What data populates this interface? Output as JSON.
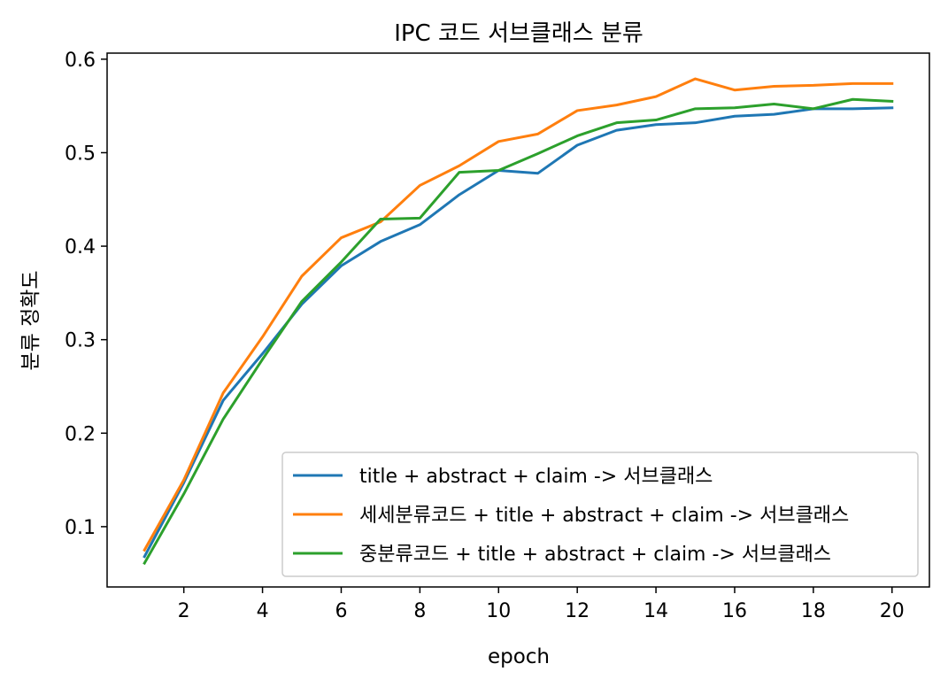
{
  "chart_data": {
    "type": "line",
    "title": "IPC 코드 서브클래스 분류",
    "xlabel": "epoch",
    "ylabel": "분류 정확도",
    "xlim": [
      0.05,
      20.95
    ],
    "ylim": [
      0.0355,
      0.6065
    ],
    "xticks": [
      2,
      4,
      6,
      8,
      10,
      12,
      14,
      16,
      18,
      20
    ],
    "yticks": [
      0.1,
      0.2,
      0.3,
      0.4,
      0.5,
      0.6
    ],
    "grid": false,
    "legend_position": "lower-right",
    "x": [
      1,
      2,
      3,
      4,
      5,
      6,
      7,
      8,
      9,
      10,
      11,
      12,
      13,
      14,
      15,
      16,
      17,
      18,
      19,
      20
    ],
    "series": [
      {
        "name": "title + abstract + claim -> 서브클래스",
        "color": "#1f77b4",
        "values": [
          0.068,
          0.147,
          0.235,
          0.285,
          0.338,
          0.379,
          0.405,
          0.423,
          0.455,
          0.481,
          0.478,
          0.508,
          0.524,
          0.53,
          0.532,
          0.539,
          0.541,
          0.547,
          0.547,
          0.548
        ]
      },
      {
        "name": "세세분류코드 + title + abstract + claim -> 서브클래스",
        "color": "#ff7f0e",
        "values": [
          0.075,
          0.15,
          0.243,
          0.303,
          0.368,
          0.409,
          0.426,
          0.465,
          0.486,
          0.512,
          0.52,
          0.545,
          0.551,
          0.56,
          0.579,
          0.567,
          0.571,
          0.572,
          0.574,
          0.574
        ]
      },
      {
        "name": "중분류코드 + title + abstract + claim -> 서브클래스",
        "color": "#2ca02c",
        "values": [
          0.061,
          0.135,
          0.215,
          0.279,
          0.341,
          0.383,
          0.429,
          0.43,
          0.479,
          0.481,
          0.499,
          0.518,
          0.532,
          0.535,
          0.547,
          0.548,
          0.552,
          0.547,
          0.557,
          0.555
        ]
      }
    ]
  }
}
